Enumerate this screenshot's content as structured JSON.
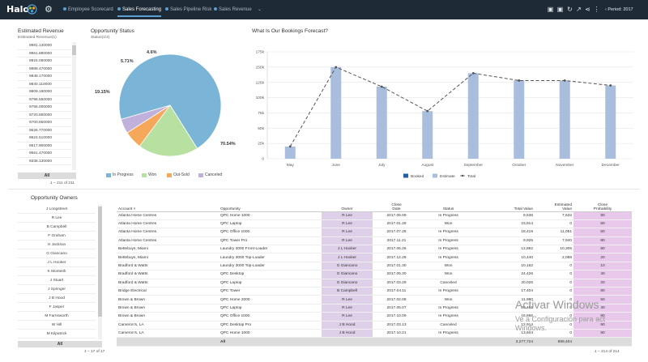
{
  "topbar": {
    "logo": "Halo",
    "tabs": [
      "Employee Scorecard",
      "Sales Forecasting",
      "Sales Pipeline Risk",
      "Sales Revenue"
    ],
    "active_tab": 1,
    "chevron": "⌄",
    "period": "Period: 2017"
  },
  "estimated_revenue": {
    "title": "Estimated Revenue",
    "subtitle": "Estimated Revenue(1)",
    "values": [
      "9981.130000",
      "9961.880000",
      "9924.050000",
      "9888.470000",
      "9848.170000",
      "9840.110000",
      "9809.180000",
      "9796.550000",
      "9755.000000",
      "9720.850000",
      "9700.650000",
      "9626.770000",
      "9624.510000",
      "9617.900000",
      "9561.470000",
      "9338.130000"
    ],
    "all_label": "All",
    "pager": "1 – 211 of 211"
  },
  "opportunity_status": {
    "title": "Opportunity Status",
    "subtitle": "Status(1/2)",
    "slices": [
      {
        "name": "In Progress",
        "pct": 70.54,
        "label": "70.54%",
        "color": "#7ab4d6"
      },
      {
        "name": "Won",
        "pct": 19.15,
        "label": "19.15%",
        "color": "#b8e0a0"
      },
      {
        "name": "Out-Sold",
        "pct": 5.71,
        "label": "5.71%",
        "color": "#f5a85a"
      },
      {
        "name": "Canceled",
        "pct": 4.6,
        "label": "4.6%",
        "color": "#c0b0dc"
      }
    ]
  },
  "chart_data": {
    "type": "bar",
    "title": "What Is Our Bookings Forecast?",
    "categories": [
      "May",
      "June",
      "July",
      "August",
      "September",
      "October",
      "November",
      "December"
    ],
    "y_ticks": [
      "0",
      "25k",
      "50k",
      "75k",
      "100k",
      "125k",
      "150k",
      "175k"
    ],
    "ylim": [
      0,
      175000
    ],
    "series": [
      {
        "name": "Booked",
        "type": "bar",
        "color": "#1f5fa8",
        "values": [
          0,
          0,
          0,
          0,
          0,
          0,
          0,
          0
        ]
      },
      {
        "name": "Estimate",
        "type": "bar",
        "color": "#a9bedd",
        "values": [
          20000,
          150000,
          118000,
          78000,
          140000,
          128000,
          128000,
          120000
        ]
      },
      {
        "name": "Total",
        "type": "line",
        "color": "#555555",
        "values": [
          20000,
          150000,
          118000,
          78000,
          140000,
          128000,
          128000,
          120000
        ]
      }
    ],
    "legend_position": "bottom",
    "grid": true
  },
  "opportunity_owners": {
    "title": "Opportunity Owners",
    "names": [
      "J Longstreet",
      "R Lee",
      "B Campbell",
      "F Graham",
      "H Jackson",
      "G Giancano",
      "J L Hooker",
      "K Monteith",
      "J Stuart",
      "J Springer",
      "J B Hood",
      "F Jasper",
      "M Farnsworth",
      "W Hill",
      "M Kilpatrick"
    ],
    "all_label": "All",
    "pager": "1 – 17 of 17"
  },
  "table": {
    "headers": {
      "account": "Account ˄",
      "opportunity": "Opportunity",
      "owner": "Owner",
      "close_date": [
        "Close",
        "Date"
      ],
      "status": "Status",
      "total_value": "Total Value",
      "estimated_value": [
        "Estimated",
        "Value"
      ],
      "close_probability": [
        "Close",
        "Probability"
      ]
    },
    "rows": [
      [
        "Atlanta Home Centres",
        "QPC Home 1000",
        "R Lee",
        "2017.06.09",
        "In Progress",
        "9,536",
        "7,632",
        "80"
      ],
      [
        "Atlanta Home Centres",
        "QPC Laptop",
        "R Lee",
        "2017.01.28",
        "Won",
        "23,914",
        "0",
        "60"
      ],
      [
        "Atlanta Home Centres",
        "QPC Office 1000",
        "R Lee",
        "2017.07.28",
        "In Progress",
        "18,419",
        "11,051",
        "60"
      ],
      [
        "Atlanta Home Centres",
        "QPC Tower Pro",
        "R Lee",
        "2017.11.21",
        "In Progress",
        "9,925",
        "7,940",
        "80"
      ],
      [
        "Bettebuys, Miami",
        "Laundry 3000 Front-Loader",
        "J L Hooker",
        "2017.06.26",
        "In Progress",
        "12,882",
        "10,305",
        "80"
      ],
      [
        "Bettebuys, Miami",
        "Laundry 3000 Top-Loader",
        "J L Hooker",
        "2017.12.28",
        "In Progress",
        "10,440",
        "2,088",
        "20"
      ],
      [
        "Bradford & Watts",
        "Laundry 3000 Top-Loader",
        "G Giancano",
        "2017.01.30",
        "Won",
        "10,162",
        "0",
        "10"
      ],
      [
        "Bradford & Watts",
        "QPC Desktop",
        "G Giancano",
        "2017.05.30",
        "Won",
        "24,426",
        "0",
        "40"
      ],
      [
        "Bradford & Watts",
        "QPC Laptop",
        "G Giancano",
        "2017.03.29",
        "Canceled",
        "20,025",
        "0",
        "20"
      ],
      [
        "Bridge Electrical",
        "QPC Tower",
        "B Campbell",
        "2017.04.11",
        "In Progress",
        "17,404",
        "0",
        "80"
      ],
      [
        "Brown & Brown",
        "QPC Home 2000",
        "R Lee",
        "2017.02.08",
        "Won",
        "11,980",
        "0",
        "50"
      ],
      [
        "Brown & Brown",
        "QPC Laptop",
        "R Lee",
        "2017.05.07",
        "In Progress",
        "20,455",
        "0",
        "40"
      ],
      [
        "Brown & Brown",
        "QPC Office 1000",
        "R Lee",
        "2017.10.09",
        "In Progress",
        "16,866",
        "0",
        "80"
      ],
      [
        "Cameron's, LA",
        "QPC Desktop Pro",
        "J B Hood",
        "2017.03.13",
        "Canceled",
        "12,914",
        "0",
        "90"
      ],
      [
        "Cameron's, LA",
        "QPC Home 1000",
        "J B Hood",
        "2017.10.21",
        "In Progress",
        "13,604",
        "0",
        "90"
      ]
    ],
    "totals": {
      "label": "All",
      "total_value": "3,277,724",
      "estimated_value": "889,404"
    },
    "pager": "1 – 214 of 214"
  },
  "watermark": {
    "line1": "Activar Windows",
    "line2": "Ve a Configuración para act",
    "line3": "Windows."
  }
}
